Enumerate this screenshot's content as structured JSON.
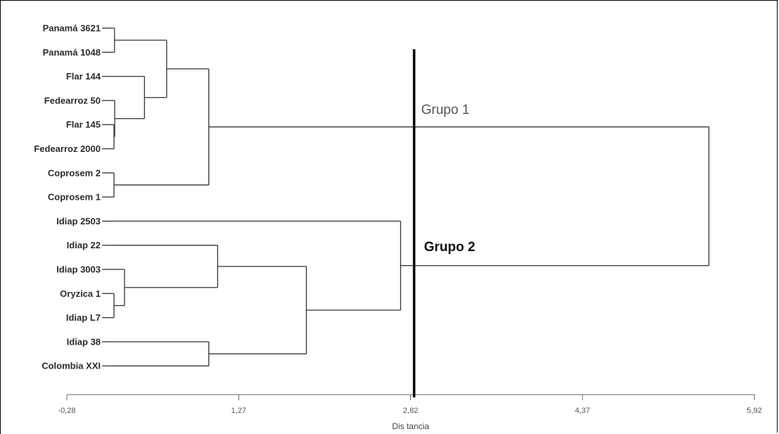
{
  "chart_data": {
    "type": "dendrogram",
    "xlabel": "Dis tancia",
    "x_ticks": [
      "-0,28",
      "1,27",
      "2,82",
      "4,37",
      "5,92"
    ],
    "x_tick_values": [
      -0.28,
      1.27,
      2.82,
      4.37,
      5.92
    ],
    "xlim": [
      -0.28,
      5.92
    ],
    "leaves": [
      "Panamá 3621",
      "Panamá 1048",
      "Flar 144",
      "Fedearroz 50",
      "Flar 145",
      "Fedearroz 2000",
      "Coprosem 2",
      "Coprosem 1",
      "Idiap 2503",
      "Idiap 22",
      "Idiap 3003",
      "Oryzica 1",
      "Idiap L7",
      "Idiap 38",
      "Colombia XXI"
    ],
    "merges": [
      {
        "children": [
          "L6",
          "L7"
        ],
        "height": -0.28
      },
      {
        "children": [
          "L11",
          "L12"
        ],
        "height": -0.28
      },
      {
        "children": [
          "L4",
          "L5"
        ],
        "height": -0.12
      },
      {
        "children": [
          "L3",
          "N2"
        ],
        "height": 0.11
      },
      {
        "children": [
          "L0",
          "L1"
        ],
        "height": 0.15
      },
      {
        "children": [
          "L10",
          "N1"
        ],
        "height": 0.24
      },
      {
        "children": [
          "L2",
          "N3"
        ],
        "height": 0.42
      },
      {
        "children": [
          "N4",
          "N6"
        ],
        "height": 0.62
      },
      {
        "children": [
          "N7",
          "N0"
        ],
        "height": 1.0
      },
      {
        "children": [
          "L13",
          "L14"
        ],
        "height": 1.0
      },
      {
        "children": [
          "L9",
          "N5"
        ],
        "height": 1.08
      },
      {
        "children": [
          "N10",
          "N9"
        ],
        "height": 1.88
      },
      {
        "children": [
          "L8",
          "N11"
        ],
        "height": 2.73
      },
      {
        "children": [
          "N8",
          "N12"
        ],
        "height": 5.51
      }
    ],
    "cut_height": 2.82,
    "groups": [
      {
        "label": "Grupo 1",
        "members": [
          "Panamá 3621",
          "Panamá 1048",
          "Flar 144",
          "Fedearroz 50",
          "Flar 145",
          "Fedearroz 2000",
          "Coprosem 2",
          "Coprosem 1"
        ]
      },
      {
        "label": "Grupo 2",
        "members": [
          "Idiap 2503",
          "Idiap 22",
          "Idiap 3003",
          "Oryzica 1",
          "Idiap L7",
          "Idiap 38",
          "Colombia XXI"
        ]
      }
    ],
    "grid": false
  }
}
